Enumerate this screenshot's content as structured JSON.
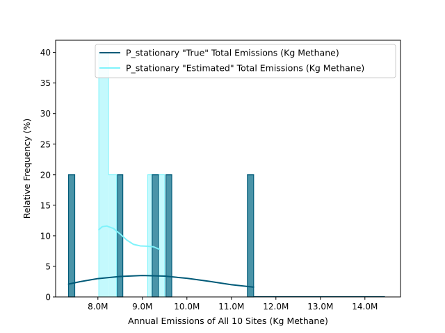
{
  "chart_data": {
    "type": "histogram",
    "xlabel": "Annual Emissions of All 10 Sites (Kg Methane)",
    "ylabel": "Relative Frequency (%)",
    "xlim": [
      7.05,
      14.8
    ],
    "ylim": [
      0,
      42
    ],
    "x_ticks": [
      {
        "value": 8.0,
        "label": "8.0M"
      },
      {
        "value": 9.0,
        "label": "9.0M"
      },
      {
        "value": 10.0,
        "label": "10.0M"
      },
      {
        "value": 11.0,
        "label": "11.0M"
      },
      {
        "value": 12.0,
        "label": "12.0M"
      },
      {
        "value": 13.0,
        "label": "13.0M"
      },
      {
        "value": 14.0,
        "label": "14.0M"
      }
    ],
    "y_ticks": [
      0,
      5,
      10,
      15,
      20,
      25,
      30,
      35,
      40
    ],
    "legend_position": "top-right",
    "series": [
      {
        "name": "P_stationary \"True\" Total Emissions (Kg Methane)",
        "line_color": "#005a78",
        "fill_color": "#4a94a8",
        "style": "bars",
        "bars": [
          {
            "x0": 7.34,
            "x1": 7.48,
            "value": 20
          },
          {
            "x0": 8.44,
            "x1": 8.56,
            "value": 20
          },
          {
            "x0": 9.22,
            "x1": 9.36,
            "value": 20
          },
          {
            "x0": 9.53,
            "x1": 9.66,
            "value": 20
          },
          {
            "x0": 11.36,
            "x1": 11.5,
            "value": 20
          },
          {
            "x0": 11.5,
            "x1": 14.45,
            "value": 0
          }
        ],
        "kde": [
          {
            "x": 7.34,
            "y": 2.1
          },
          {
            "x": 7.6,
            "y": 2.5
          },
          {
            "x": 8.0,
            "y": 3.0
          },
          {
            "x": 8.5,
            "y": 3.35
          },
          {
            "x": 9.0,
            "y": 3.5
          },
          {
            "x": 9.5,
            "y": 3.4
          },
          {
            "x": 10.0,
            "y": 3.05
          },
          {
            "x": 10.5,
            "y": 2.55
          },
          {
            "x": 11.0,
            "y": 2.0
          },
          {
            "x": 11.5,
            "y": 1.6
          }
        ]
      },
      {
        "name": "P_stationary \"Estimated\" Total Emissions (Kg Methane)",
        "line_color": "#7ff3fb",
        "fill_color": "#c4f9fd",
        "style": "step",
        "bars": [
          {
            "x0": 8.02,
            "x1": 8.24,
            "value": 40
          },
          {
            "x0": 8.24,
            "x1": 8.42,
            "value": 20
          },
          {
            "x0": 8.42,
            "x1": 8.56,
            "value": 0
          },
          {
            "x0": 9.12,
            "x1": 9.5,
            "value": 20
          }
        ],
        "kde": [
          {
            "x": 8.02,
            "y": 11.0
          },
          {
            "x": 8.1,
            "y": 11.5
          },
          {
            "x": 8.2,
            "y": 11.6
          },
          {
            "x": 8.35,
            "y": 11.2
          },
          {
            "x": 8.5,
            "y": 10.3
          },
          {
            "x": 8.65,
            "y": 9.3
          },
          {
            "x": 8.8,
            "y": 8.6
          },
          {
            "x": 8.95,
            "y": 8.35
          },
          {
            "x": 9.1,
            "y": 8.3
          },
          {
            "x": 9.25,
            "y": 8.2
          },
          {
            "x": 9.38,
            "y": 7.8
          }
        ]
      }
    ]
  }
}
